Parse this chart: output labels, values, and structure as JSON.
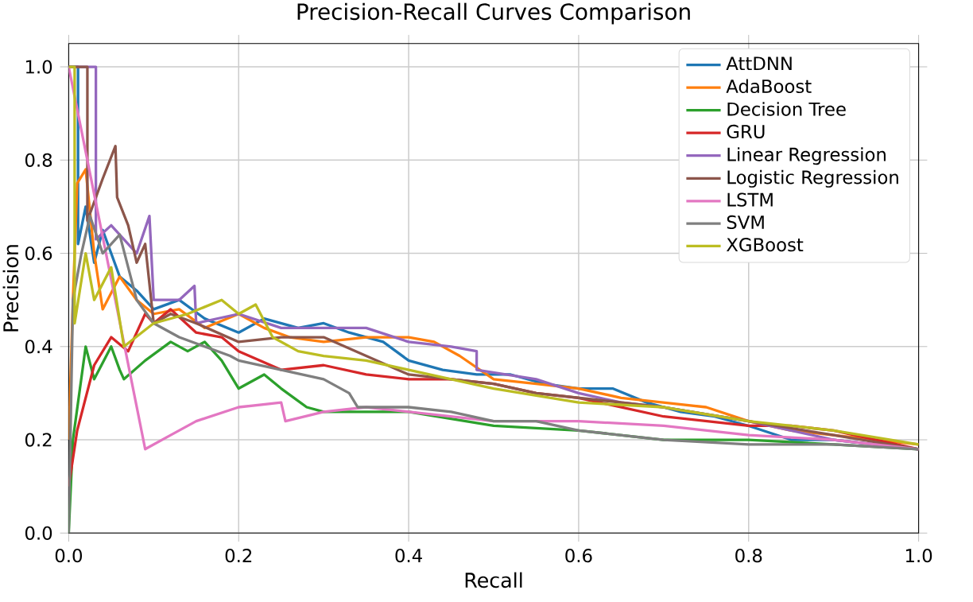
{
  "chart_data": {
    "type": "line",
    "title": "Precision-Recall Curves Comparison",
    "xlabel": "Recall",
    "ylabel": "Precision",
    "xlim": [
      0,
      1
    ],
    "ylim": [
      0,
      1.05
    ],
    "xticks": [
      {
        "value": 0,
        "label": "0.0"
      },
      {
        "value": 0.2,
        "label": "0.2"
      },
      {
        "value": 0.4,
        "label": "0.4"
      },
      {
        "value": 0.6,
        "label": "0.6"
      },
      {
        "value": 0.8,
        "label": "0.8"
      },
      {
        "value": 1,
        "label": "1.0"
      }
    ],
    "yticks": [
      {
        "value": 0,
        "label": "0.0"
      },
      {
        "value": 0.2,
        "label": "0.2"
      },
      {
        "value": 0.4,
        "label": "0.4"
      },
      {
        "value": 0.6,
        "label": "0.6"
      },
      {
        "value": 0.8,
        "label": "0.8"
      },
      {
        "value": 1,
        "label": "1.0"
      }
    ],
    "grid": true,
    "legend": "top right",
    "marker": "none",
    "line_style": "solid",
    "series": [
      {
        "name": "AttDNN",
        "color": "#1f77b4",
        "x": [
          0,
          0.011,
          0.011,
          0.02,
          0.03,
          0.04,
          0.06,
          0.08,
          0.1,
          0.13,
          0.16,
          0.2,
          0.23,
          0.27,
          0.3,
          0.33,
          0.37,
          0.4,
          0.44,
          0.48,
          0.52,
          0.56,
          0.6,
          0.64,
          0.68,
          0.72,
          0.76,
          0.8,
          0.85,
          0.9,
          0.95,
          1.0
        ],
        "values": [
          1,
          1,
          0.62,
          0.7,
          0.58,
          0.65,
          0.55,
          0.52,
          0.48,
          0.5,
          0.46,
          0.43,
          0.46,
          0.44,
          0.45,
          0.43,
          0.41,
          0.37,
          0.35,
          0.34,
          0.34,
          0.32,
          0.31,
          0.31,
          0.28,
          0.26,
          0.25,
          0.23,
          0.2,
          0.2,
          0.19,
          0.18
        ]
      },
      {
        "name": "AdaBoost",
        "color": "#ff7f0e",
        "x": [
          0,
          0.005,
          0.01,
          0.02,
          0.03,
          0.04,
          0.06,
          0.08,
          0.1,
          0.13,
          0.16,
          0.2,
          0.23,
          0.26,
          0.3,
          0.35,
          0.4,
          0.43,
          0.46,
          0.5,
          0.55,
          0.6,
          0.65,
          0.7,
          0.75,
          0.8,
          0.85,
          0.9,
          0.95,
          1.0
        ],
        "values": [
          0.2,
          0.5,
          0.75,
          0.78,
          0.6,
          0.48,
          0.55,
          0.5,
          0.47,
          0.48,
          0.44,
          0.47,
          0.44,
          0.42,
          0.41,
          0.42,
          0.42,
          0.41,
          0.38,
          0.33,
          0.32,
          0.31,
          0.29,
          0.28,
          0.27,
          0.24,
          0.22,
          0.21,
          0.2,
          0.19
        ]
      },
      {
        "name": "Decision Tree",
        "color": "#2ca02c",
        "x": [
          0,
          0.005,
          0.02,
          0.03,
          0.05,
          0.06,
          0.065,
          0.09,
          0.12,
          0.14,
          0.16,
          0.18,
          0.2,
          0.23,
          0.25,
          0.28,
          0.3,
          0.35,
          0.4,
          0.5,
          0.6,
          0.7,
          0.8,
          0.9,
          1.0
        ],
        "values": [
          0,
          0.2,
          0.4,
          0.33,
          0.4,
          0.35,
          0.33,
          0.37,
          0.41,
          0.39,
          0.41,
          0.37,
          0.31,
          0.34,
          0.31,
          0.27,
          0.26,
          0.26,
          0.26,
          0.23,
          0.22,
          0.2,
          0.2,
          0.19,
          0.18
        ]
      },
      {
        "name": "GRU",
        "color": "#d62728",
        "x": [
          0,
          0.01,
          0.03,
          0.05,
          0.07,
          0.09,
          0.1,
          0.12,
          0.15,
          0.18,
          0.2,
          0.25,
          0.3,
          0.35,
          0.4,
          0.45,
          0.5,
          0.55,
          0.6,
          0.7,
          0.8,
          0.85,
          0.9,
          0.95,
          1.0
        ],
        "values": [
          0.1,
          0.22,
          0.36,
          0.42,
          0.39,
          0.47,
          0.45,
          0.48,
          0.43,
          0.42,
          0.39,
          0.35,
          0.36,
          0.34,
          0.33,
          0.33,
          0.32,
          0.3,
          0.29,
          0.25,
          0.23,
          0.23,
          0.22,
          0.2,
          0.18
        ]
      },
      {
        "name": "Linear Regression",
        "color": "#9467bd",
        "x": [
          0,
          0.032,
          0.032,
          0.05,
          0.08,
          0.095,
          0.1,
          0.13,
          0.148,
          0.15,
          0.2,
          0.25,
          0.3,
          0.35,
          0.4,
          0.45,
          0.48,
          0.48,
          0.55,
          0.6,
          0.65,
          0.7,
          0.8,
          0.9,
          1.0
        ],
        "values": [
          1,
          1,
          0.63,
          0.66,
          0.6,
          0.68,
          0.5,
          0.5,
          0.53,
          0.45,
          0.47,
          0.44,
          0.44,
          0.44,
          0.41,
          0.4,
          0.39,
          0.35,
          0.33,
          0.3,
          0.28,
          0.27,
          0.24,
          0.2,
          0.18
        ]
      },
      {
        "name": "Logistic Regression",
        "color": "#8c564b",
        "x": [
          0,
          0.022,
          0.022,
          0.04,
          0.055,
          0.057,
          0.07,
          0.08,
          0.09,
          0.1,
          0.12,
          0.15,
          0.2,
          0.25,
          0.3,
          0.35,
          0.4,
          0.45,
          0.5,
          0.55,
          0.6,
          0.7,
          0.8,
          0.9,
          1.0
        ],
        "values": [
          1,
          1,
          0.67,
          0.76,
          0.83,
          0.72,
          0.66,
          0.58,
          0.62,
          0.45,
          0.47,
          0.45,
          0.41,
          0.42,
          0.42,
          0.38,
          0.34,
          0.33,
          0.32,
          0.3,
          0.29,
          0.27,
          0.24,
          0.21,
          0.18
        ]
      },
      {
        "name": "LSTM",
        "color": "#e377c2",
        "x": [
          0,
          0.09,
          0.12,
          0.15,
          0.2,
          0.25,
          0.255,
          0.3,
          0.35,
          0.4,
          0.45,
          0.5,
          0.55,
          0.6,
          0.7,
          0.8,
          0.9,
          1.0
        ],
        "values": [
          1,
          0.18,
          0.21,
          0.24,
          0.27,
          0.28,
          0.24,
          0.26,
          0.27,
          0.26,
          0.25,
          0.24,
          0.24,
          0.24,
          0.23,
          0.21,
          0.2,
          0.18
        ]
      },
      {
        "name": "SVM",
        "color": "#7f7f7f",
        "x": [
          0,
          0.005,
          0.015,
          0.025,
          0.04,
          0.06,
          0.08,
          0.1,
          0.13,
          0.16,
          0.19,
          0.2,
          0.25,
          0.3,
          0.33,
          0.34,
          0.4,
          0.45,
          0.5,
          0.55,
          0.6,
          0.65,
          0.7,
          0.8,
          0.9,
          1.0
        ],
        "values": [
          0,
          0.5,
          0.6,
          0.68,
          0.6,
          0.64,
          0.5,
          0.45,
          0.42,
          0.4,
          0.38,
          0.37,
          0.35,
          0.33,
          0.3,
          0.27,
          0.27,
          0.26,
          0.24,
          0.24,
          0.22,
          0.21,
          0.2,
          0.19,
          0.19,
          0.18
        ]
      },
      {
        "name": "XGBoost",
        "color": "#bcbd22",
        "x": [
          0,
          0.007,
          0.007,
          0.02,
          0.03,
          0.05,
          0.065,
          0.1,
          0.14,
          0.18,
          0.2,
          0.22,
          0.24,
          0.27,
          0.3,
          0.35,
          0.4,
          0.45,
          0.5,
          0.6,
          0.7,
          0.8,
          0.9,
          1.0
        ],
        "values": [
          1,
          1,
          0.45,
          0.6,
          0.5,
          0.57,
          0.4,
          0.45,
          0.47,
          0.5,
          0.47,
          0.49,
          0.42,
          0.39,
          0.38,
          0.37,
          0.35,
          0.33,
          0.31,
          0.28,
          0.27,
          0.24,
          0.22,
          0.19
        ]
      }
    ]
  }
}
